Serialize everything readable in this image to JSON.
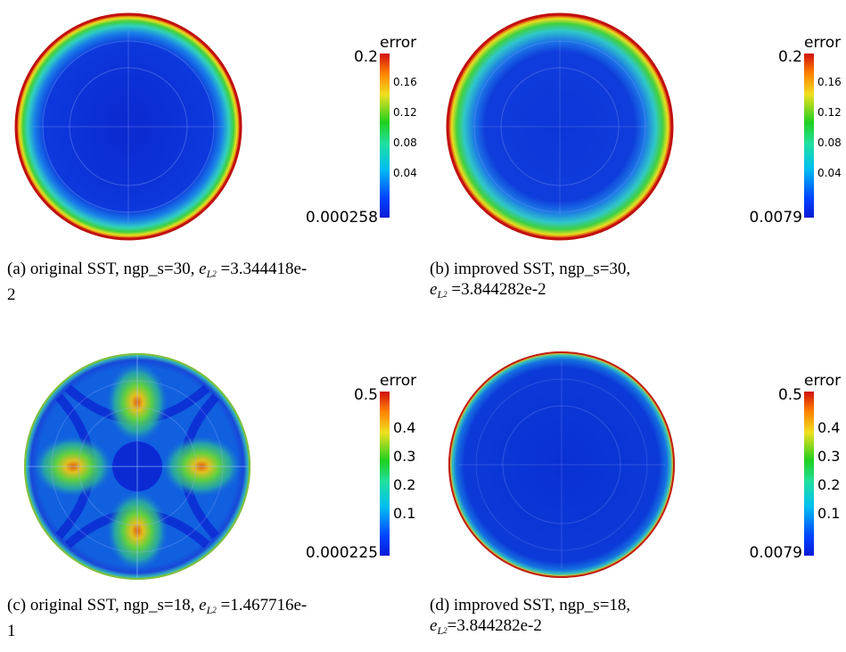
{
  "figure": {
    "panels": [
      {
        "id": "a",
        "cbar_title": "error",
        "cbar_max": "0.2",
        "cbar_min": "0.000258",
        "ticks": [
          "0.16",
          "0.12",
          "0.08",
          "0.04"
        ],
        "caption_prefix": "(a)  original SST, ngp_s=30, ",
        "caption_value": " =3.344418e-",
        "caption_line2": "2"
      },
      {
        "id": "b",
        "cbar_title": "error",
        "cbar_max": "0.2",
        "cbar_min": "0.0079",
        "ticks": [
          "0.16",
          "0.12",
          "0.08",
          "0.04"
        ],
        "caption_prefix": "(b)   improved SST, ngp_s=30,",
        "caption_value": " =3.844282e-2"
      },
      {
        "id": "c",
        "cbar_title": "error",
        "cbar_max": "0.5",
        "cbar_min": "0.000225",
        "ticks": [
          "0.4",
          "0.3",
          "0.2",
          "0.1"
        ],
        "caption_prefix": "(c)  original SST, ngp_s=18, ",
        "caption_value": " =1.467716e-",
        "caption_line2": "1"
      },
      {
        "id": "d",
        "cbar_title": "error",
        "cbar_max": "0.5",
        "cbar_min": "0.0079",
        "ticks": [
          "0.4",
          "0.3",
          "0.2",
          "0.1"
        ],
        "caption_prefix": "(d)   improved SST, ngp_s=18,",
        "caption_value": "=3.844282e-2"
      }
    ],
    "symbol_e": "e",
    "symbol_L": "L",
    "symbol_2": "2"
  }
}
